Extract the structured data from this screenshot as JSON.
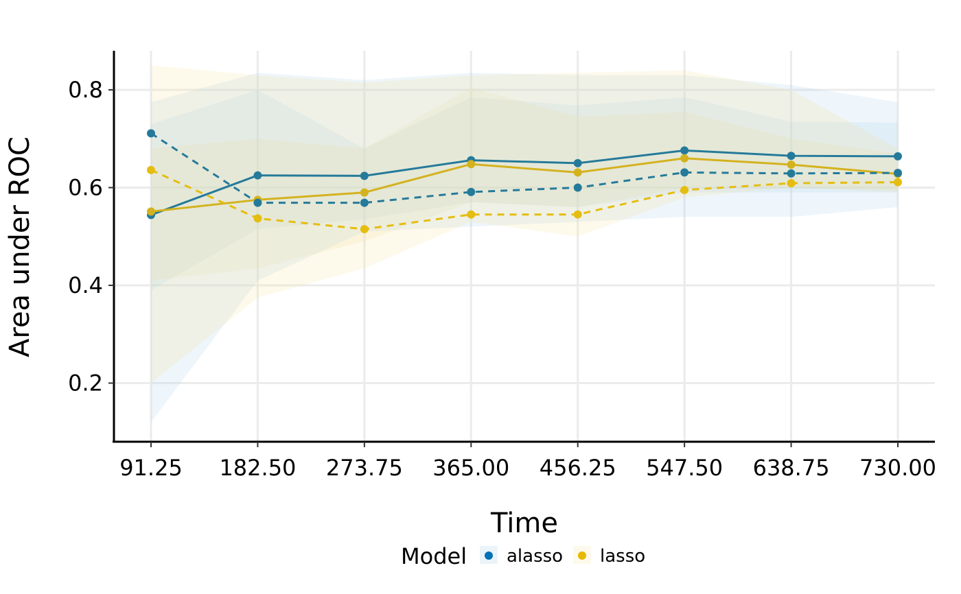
{
  "chart_data": {
    "type": "line",
    "xlabel": "Time",
    "ylabel": "Area under ROC",
    "x": [
      91.25,
      182.5,
      273.75,
      365.0,
      456.25,
      547.5,
      638.75,
      730.0
    ],
    "x_tick_labels": [
      "91.25",
      "182.50",
      "273.75",
      "365.00",
      "456.25",
      "547.50",
      "638.75",
      "730.00"
    ],
    "y_ticks": [
      0.2,
      0.4,
      0.6,
      0.8
    ],
    "y_tick_labels": [
      "0.2",
      "0.4",
      "0.6",
      "0.8"
    ],
    "ylim": [
      0.08,
      0.88
    ],
    "grid": true,
    "legend": {
      "title": "Model",
      "position": "bottom",
      "entries": [
        {
          "label": "alasso",
          "color": "#0072b5"
        },
        {
          "label": "lasso",
          "color": "#e7b800"
        }
      ]
    },
    "series": [
      {
        "name": "alasso",
        "color": "#0072b5",
        "line_color": "#257a9a",
        "linetype": "solid",
        "values": [
          0.544,
          0.625,
          0.624,
          0.656,
          0.65,
          0.676,
          0.665,
          0.664
        ],
        "lower": [
          0.39,
          0.515,
          0.535,
          0.57,
          0.56,
          0.59,
          0.59,
          0.59
        ],
        "upper": [
          0.73,
          0.8,
          0.68,
          0.785,
          0.768,
          0.785,
          0.735,
          0.733
        ]
      },
      {
        "name": "lasso",
        "color": "#e7b800",
        "line_color": "#d4b21f",
        "linetype": "solid",
        "values": [
          0.551,
          0.575,
          0.59,
          0.648,
          0.631,
          0.66,
          0.647,
          0.628
        ],
        "lower": [
          0.41,
          0.435,
          0.49,
          0.57,
          0.56,
          0.6,
          0.6,
          0.59
        ],
        "upper": [
          0.68,
          0.7,
          0.68,
          0.805,
          0.745,
          0.755,
          0.7,
          0.67
        ]
      },
      {
        "name": "alasso",
        "color": "#0072b5",
        "line_color": "#257a9a",
        "linetype": "dashed",
        "values": [
          0.711,
          0.569,
          0.569,
          0.591,
          0.6,
          0.631,
          0.629,
          0.63
        ],
        "lower": [
          0.12,
          0.41,
          0.51,
          0.52,
          0.53,
          0.54,
          0.54,
          0.56
        ],
        "upper": [
          0.775,
          0.835,
          0.82,
          0.835,
          0.83,
          0.83,
          0.81,
          0.775
        ]
      },
      {
        "name": "lasso",
        "color": "#e7b800",
        "line_color": "#e5bd10",
        "linetype": "dashed",
        "values": [
          0.636,
          0.537,
          0.515,
          0.545,
          0.545,
          0.595,
          0.609,
          0.611
        ],
        "lower": [
          0.2,
          0.375,
          0.435,
          0.53,
          0.5,
          0.58,
          0.6,
          0.595
        ],
        "upper": [
          0.85,
          0.83,
          0.815,
          0.83,
          0.835,
          0.84,
          0.8,
          0.68
        ]
      }
    ]
  }
}
